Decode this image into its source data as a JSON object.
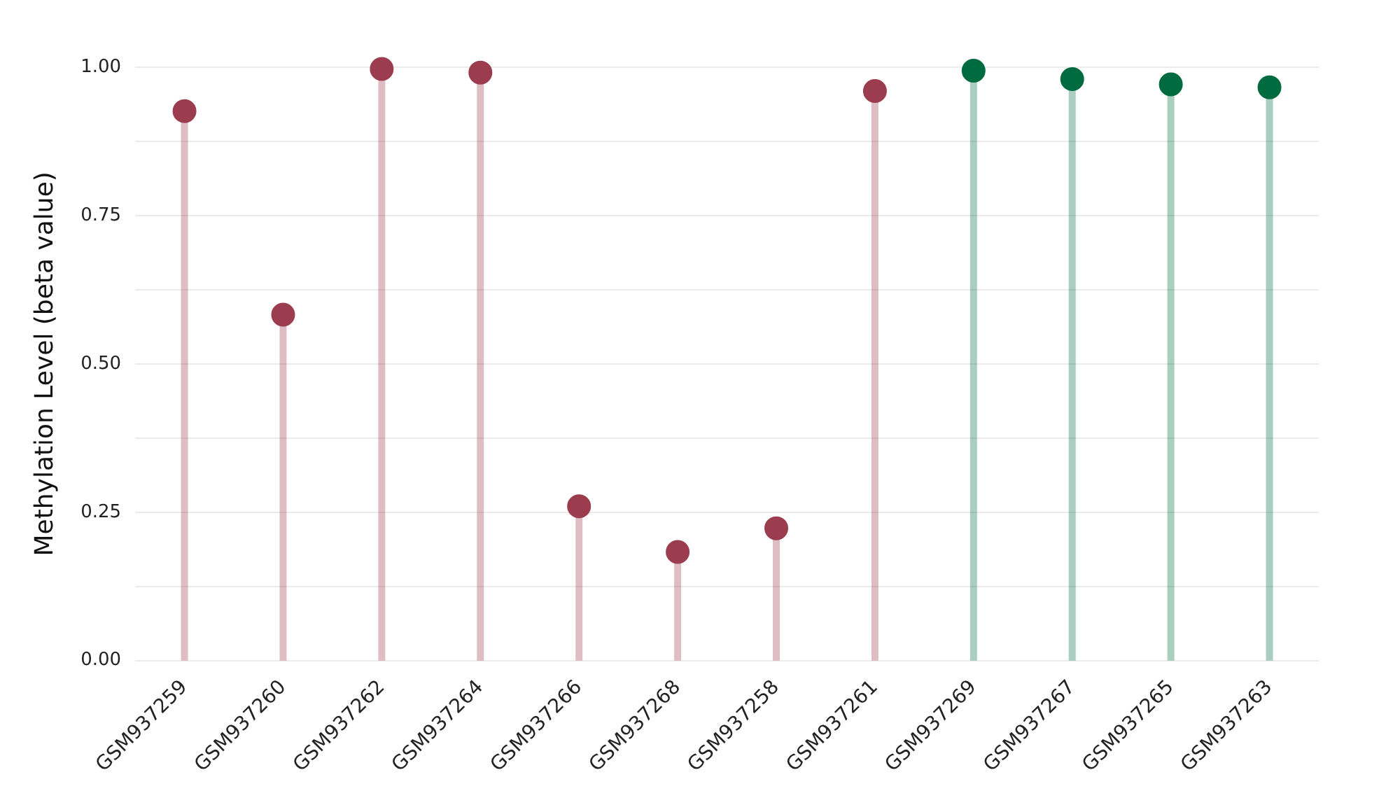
{
  "chart_data": {
    "type": "lollipop",
    "ylabel": "Methylation Level (beta value)",
    "categories": [
      "GSM937259",
      "GSM937260",
      "GSM937262",
      "GSM937264",
      "GSM937266",
      "GSM937268",
      "GSM937258",
      "GSM937261",
      "GSM937269",
      "GSM937267",
      "GSM937265",
      "GSM937263"
    ],
    "values": [
      0.926,
      0.583,
      0.997,
      0.991,
      0.26,
      0.183,
      0.223,
      0.96,
      0.994,
      0.98,
      0.971,
      0.966
    ],
    "colors": [
      "#9b3d4e",
      "#9b3d4e",
      "#9b3d4e",
      "#9b3d4e",
      "#9b3d4e",
      "#9b3d4e",
      "#9b3d4e",
      "#9b3d4e",
      "#006b3f",
      "#006b3f",
      "#006b3f",
      "#006b3f"
    ],
    "ylim": [
      0,
      1
    ],
    "yticks": [
      {
        "value": 0,
        "label": "0.00"
      },
      {
        "value": 0.125,
        "label": null
      },
      {
        "value": 0.25,
        "label": "0.25"
      },
      {
        "value": 0.375,
        "label": null
      },
      {
        "value": 0.5,
        "label": "0.50"
      },
      {
        "value": 0.625,
        "label": null
      },
      {
        "value": 0.75,
        "label": "0.75"
      },
      {
        "value": 0.875,
        "label": null
      },
      {
        "value": 1,
        "label": "1.00"
      }
    ],
    "grid": "y",
    "marker": "circle"
  }
}
